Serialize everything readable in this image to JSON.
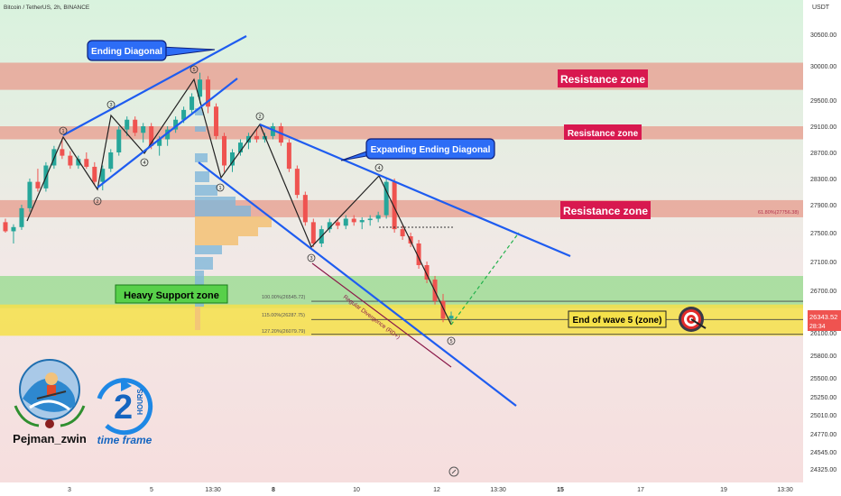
{
  "header": {
    "symbol_line": "Bitcoin / TetherUS, 2h, BINANCE",
    "currency": "USDT"
  },
  "chart_data": {
    "type": "candlestick",
    "symbol": "Bitcoin / TetherUS",
    "timeframe": "2h",
    "exchange": "BINANCE",
    "y_ticks": [
      30500,
      30000,
      29500,
      29100,
      28700,
      28300,
      27900,
      27500,
      27100,
      26700,
      26100,
      25800,
      25500,
      25250,
      25010,
      24770,
      24545,
      24325
    ],
    "x_ticks": [
      "3",
      "5",
      "13:30",
      "8",
      "10",
      "12",
      "13:30",
      "15",
      "17",
      "19",
      "13:30"
    ],
    "ylim": [
      24200,
      30800
    ],
    "current_price": "26343.52",
    "countdown": "28:34",
    "zones": [
      {
        "label": "Resistance zone",
        "from": 29650,
        "to": 30050,
        "color": "#e8a596"
      },
      {
        "label": "Resistance zone",
        "from": 28900,
        "to": 29100,
        "color": "#e8a596"
      },
      {
        "label": "Resistance zone",
        "from": 27720,
        "to": 27970,
        "color": "#e8a596"
      },
      {
        "label": "Heavy Support zone",
        "from": 26450,
        "to": 26900,
        "color": "#9fdc96"
      },
      {
        "label": "End of wave 5 (zone)",
        "from": 26060,
        "to": 26500,
        "color": "#f5e14a"
      }
    ],
    "fib_levels": [
      {
        "label": "100.00%(26545.72)",
        "value": 26545.72
      },
      {
        "label": "115.00%(26287.75)",
        "value": 26287.75
      },
      {
        "label": "127.20%(26079.79)",
        "value": 26079.79
      },
      {
        "label": "61.80%(27756.38)",
        "value": 27756.38
      }
    ],
    "patterns": [
      "Ending Diagonal",
      "Expanding Ending Diagonal"
    ],
    "divergence_label": "Regular Divergence (RD+)",
    "wave_labels": [
      "1",
      "2",
      "3",
      "4",
      "5",
      "1",
      "2",
      "3",
      "4",
      "5"
    ],
    "candles": [
      [
        27650,
        27700,
        27500,
        27520
      ],
      [
        27520,
        27620,
        27350,
        27580
      ],
      [
        27580,
        27900,
        27540,
        27850
      ],
      [
        27850,
        28300,
        27800,
        28250
      ],
      [
        28250,
        28450,
        28100,
        28150
      ],
      [
        28150,
        28550,
        28100,
        28500
      ],
      [
        28500,
        28800,
        28450,
        28750
      ],
      [
        28750,
        28900,
        28600,
        28650
      ],
      [
        28650,
        28720,
        28450,
        28500
      ],
      [
        28500,
        28650,
        28450,
        28600
      ],
      [
        28600,
        28700,
        28450,
        28480
      ],
      [
        28480,
        28550,
        28200,
        28250
      ],
      [
        28250,
        28500,
        28120,
        28450
      ],
      [
        28450,
        28750,
        28400,
        28700
      ],
      [
        28700,
        29100,
        28650,
        29050
      ],
      [
        29050,
        29250,
        28950,
        29200
      ],
      [
        29200,
        29250,
        28950,
        29000
      ],
      [
        29000,
        29150,
        28850,
        29100
      ],
      [
        29100,
        29150,
        28750,
        28800
      ],
      [
        28800,
        28950,
        28650,
        28900
      ],
      [
        28900,
        29100,
        28800,
        29050
      ],
      [
        29050,
        29250,
        29000,
        29200
      ],
      [
        29200,
        29400,
        29150,
        29350
      ],
      [
        29350,
        29600,
        29300,
        29550
      ],
      [
        29550,
        29900,
        29450,
        29800
      ],
      [
        29800,
        29850,
        29300,
        29400
      ],
      [
        29400,
        29450,
        28900,
        28950
      ],
      [
        28950,
        29000,
        28400,
        28500
      ],
      [
        28500,
        28750,
        28400,
        28700
      ],
      [
        28700,
        28900,
        28650,
        28850
      ],
      [
        28850,
        29000,
        28750,
        28950
      ],
      [
        28950,
        29050,
        28850,
        28900
      ],
      [
        28900,
        29000,
        28850,
        28950
      ],
      [
        28950,
        29150,
        28900,
        29100
      ],
      [
        29100,
        29150,
        28800,
        28850
      ],
      [
        28850,
        28900,
        28400,
        28450
      ],
      [
        28450,
        28500,
        28000,
        28050
      ],
      [
        28050,
        28100,
        27600,
        27650
      ],
      [
        27650,
        27700,
        27300,
        27350
      ],
      [
        27350,
        27600,
        27300,
        27550
      ],
      [
        27550,
        27700,
        27500,
        27650
      ],
      [
        27650,
        27700,
        27550,
        27600
      ],
      [
        27600,
        27750,
        27550,
        27700
      ],
      [
        27700,
        27750,
        27600,
        27650
      ],
      [
        27650,
        27720,
        27550,
        27680
      ],
      [
        27680,
        27750,
        27600,
        27700
      ],
      [
        27700,
        27800,
        27650,
        27750
      ],
      [
        27750,
        28300,
        27700,
        28250
      ],
      [
        28250,
        28300,
        27500,
        27550
      ],
      [
        27550,
        27600,
        27400,
        27450
      ],
      [
        27450,
        27500,
        27300,
        27350
      ],
      [
        27350,
        27400,
        27000,
        27050
      ],
      [
        27050,
        27100,
        26800,
        26850
      ],
      [
        26850,
        26900,
        26500,
        26550
      ],
      [
        26550,
        26650,
        26250,
        26300
      ],
      [
        26300,
        26400,
        26250,
        26340
      ]
    ]
  },
  "labels": {
    "ending_diagonal": "Ending Diagonal",
    "expanding_diagonal": "Expanding Ending Diagonal",
    "resistance1": "Resistance zone",
    "resistance2": "Resistance zone",
    "resistance3": "Resistance zone",
    "support": "Heavy Support zone",
    "end_wave": "End of wave 5 (zone)",
    "divergence": "Regular Divergence (RD+)",
    "author": "Pejman_zwin",
    "tf_number": "2",
    "tf_unit": "HOURS",
    "tf_caption": "time frame"
  },
  "colors": {
    "bull": "#26a69a",
    "bear": "#ef5350",
    "resistance": "#e8a596",
    "support": "#9fdc96",
    "wave5": "#f5e14a",
    "trendline": "#1e5cf0",
    "label_blue": "#2d6df6",
    "label_red": "#d8184f"
  }
}
